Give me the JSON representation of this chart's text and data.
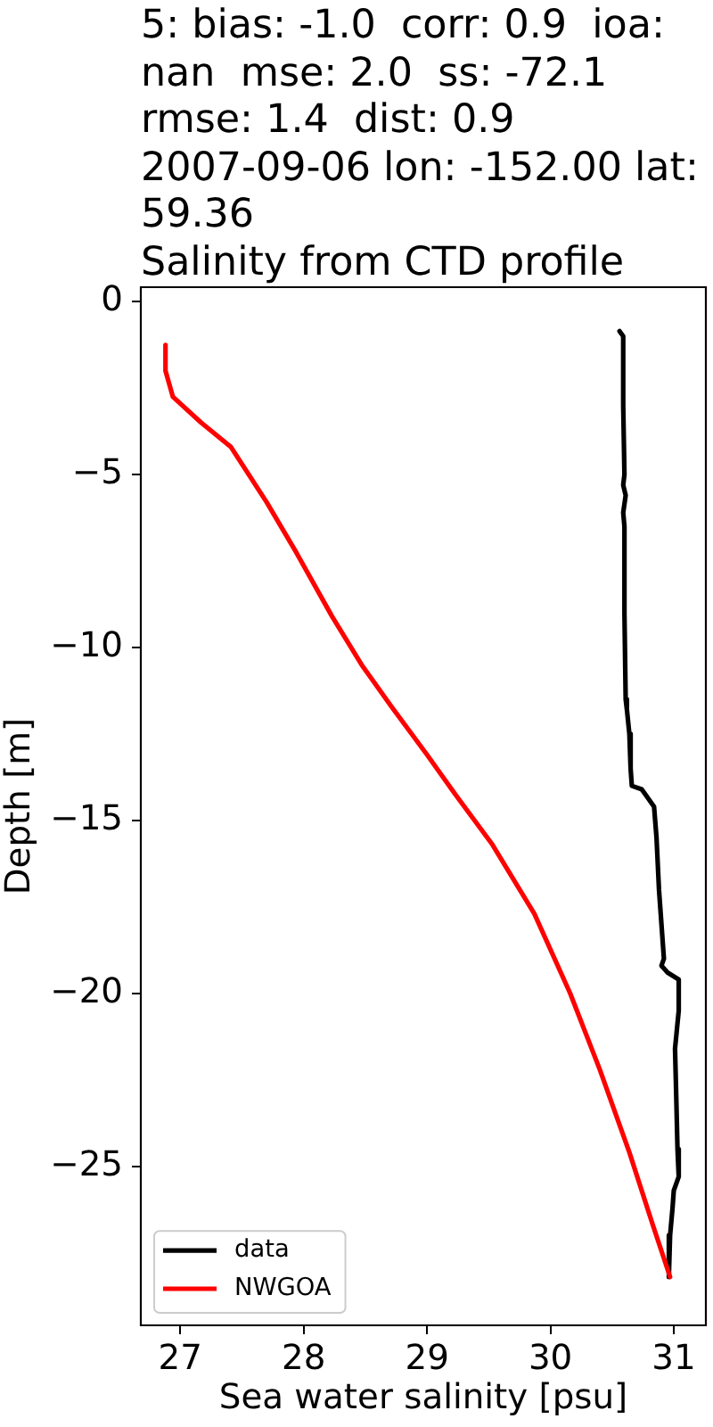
{
  "chart_data": {
    "type": "line",
    "title": "5: bias: -1.0  corr: 0.9  ioa:\nnan  mse: 2.0  ss: -72.1\nrmse: 1.4  dist: 0.9\n2007-09-06 lon: -152.00 lat:\n59.36\nSalinity from CTD profile",
    "xlabel": "Sea water salinity [psu]",
    "ylabel": "Depth [m]",
    "series": [
      {
        "name": "data",
        "color": "#000000",
        "x": [
          30.56,
          30.59,
          30.59,
          30.6,
          30.59,
          30.61,
          30.59,
          30.6,
          30.6,
          30.61,
          30.62,
          30.64,
          30.65,
          30.66,
          30.74,
          30.78,
          30.84,
          30.86,
          30.88,
          30.89,
          30.92,
          30.9,
          30.95,
          31.04,
          31.04,
          31.01,
          31.02,
          31.03,
          31.04,
          31.0,
          30.99,
          30.97,
          30.96
        ],
        "values": [
          -0.85,
          -1.0,
          -3.0,
          -5.0,
          -5.3,
          -5.6,
          -6.1,
          -6.5,
          -9.0,
          -11.5,
          -11.8,
          -12.5,
          -13.5,
          -14.0,
          -14.1,
          -14.3,
          -14.6,
          -15.5,
          -17.0,
          -17.5,
          -19.0,
          -19.2,
          -19.4,
          -19.6,
          -20.5,
          -21.6,
          -23.0,
          -24.5,
          -25.3,
          -25.7,
          -26.2,
          -27.0,
          -28.2
        ]
      },
      {
        "name": "NWGOA",
        "color": "#ff0000",
        "x": [
          26.88,
          26.88,
          26.94,
          27.17,
          27.41,
          27.7,
          27.94,
          28.23,
          28.47,
          28.71,
          29.0,
          29.24,
          29.53,
          29.87,
          30.16,
          30.4,
          30.64,
          30.83,
          30.97
        ],
        "values": [
          -1.25,
          -2.0,
          -2.75,
          -3.5,
          -4.2,
          -5.8,
          -7.25,
          -9.1,
          -10.5,
          -11.7,
          -13.1,
          -14.3,
          -15.7,
          -17.7,
          -20.0,
          -22.2,
          -24.6,
          -26.7,
          -28.2
        ]
      }
    ],
    "xlim": [
      26.68,
      31.26
    ],
    "ylim": [
      -29.6,
      0.42
    ],
    "xticks": [
      27,
      28,
      29,
      30,
      31
    ],
    "yticks": [
      0,
      {
        "value": -5,
        "label": "−5"
      },
      {
        "value": -10,
        "label": "−10"
      },
      {
        "value": -15,
        "label": "−15"
      },
      {
        "value": -20,
        "label": "−20"
      },
      {
        "value": -25,
        "label": "−25"
      }
    ],
    "legend": "bottom left"
  }
}
